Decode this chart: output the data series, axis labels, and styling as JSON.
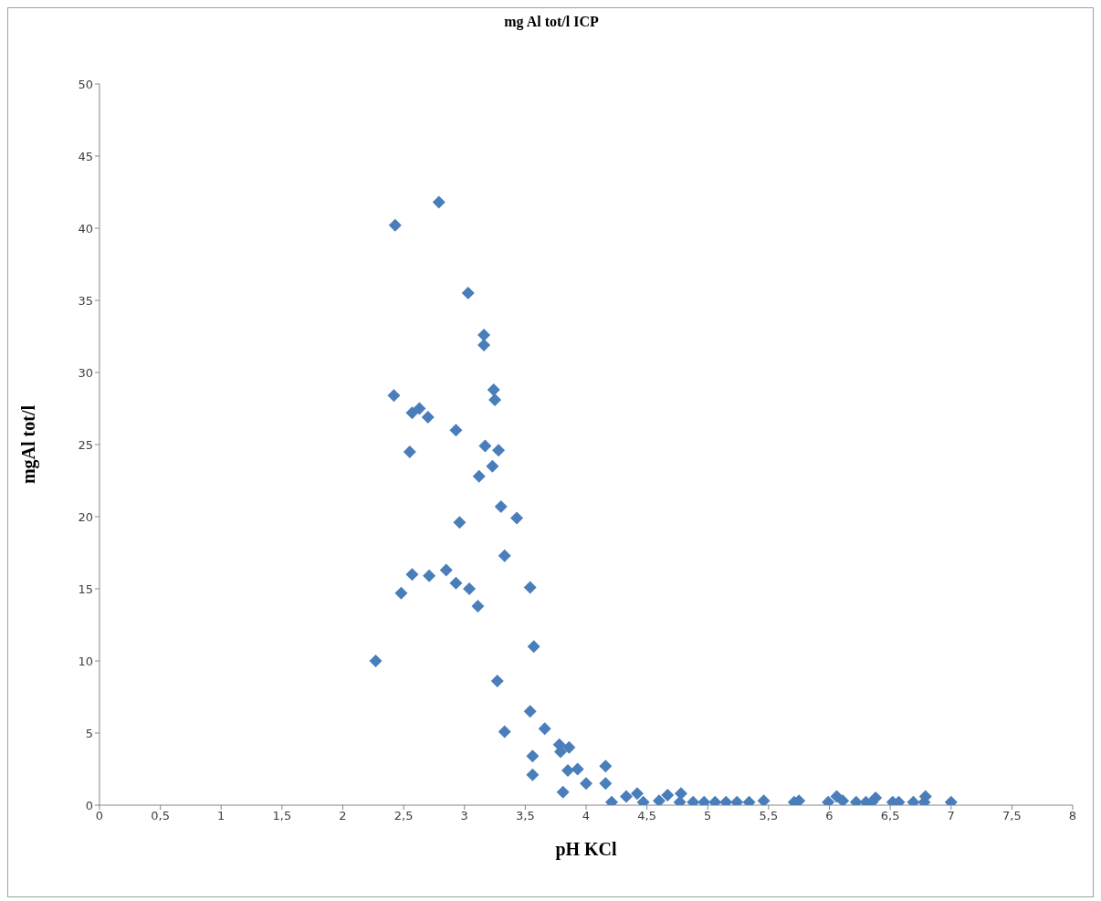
{
  "chart_data": {
    "type": "scatter",
    "title": "mg Al tot/l ICP",
    "xlabel": "pH KCl",
    "ylabel": "mgAl tot/l",
    "x": [
      2.27,
      2.43,
      2.79,
      2.42,
      2.57,
      2.63,
      2.7,
      2.55,
      2.93,
      3.03,
      3.16,
      3.16,
      3.24,
      3.25,
      3.17,
      3.28,
      3.23,
      3.12,
      3.3,
      2.96,
      3.43,
      3.33,
      2.57,
      2.71,
      2.85,
      2.48,
      2.93,
      3.04,
      3.11,
      3.54,
      3.57,
      3.27,
      3.54,
      3.33,
      3.66,
      3.78,
      3.86,
      3.79,
      3.56,
      3.56,
      3.85,
      3.93,
      4.16,
      4.0,
      4.16,
      3.81,
      4.21,
      4.33,
      4.42,
      4.47,
      4.6,
      4.67,
      4.78,
      4.77,
      4.88,
      4.97,
      5.06,
      5.15,
      5.24,
      5.34,
      5.46,
      5.71,
      5.75,
      5.99,
      6.06,
      6.11,
      6.22,
      6.3,
      6.35,
      6.38,
      6.52,
      6.57,
      6.69,
      6.78,
      6.79,
      7.0
    ],
    "series": [
      {
        "color": "#4a7ebb",
        "values": [
          10,
          40.2,
          41.8,
          28.4,
          27.2,
          27.5,
          26.9,
          24.5,
          26,
          35.5,
          32.6,
          31.9,
          28.8,
          28.1,
          24.9,
          24.6,
          23.5,
          22.8,
          20.7,
          19.6,
          19.9,
          17.3,
          16,
          15.9,
          16.3,
          14.7,
          15.4,
          15,
          13.8,
          15.1,
          11,
          8.6,
          6.5,
          5.1,
          5.3,
          4.2,
          4,
          3.7,
          3.4,
          2.1,
          2.4,
          2.5,
          2.7,
          1.5,
          1.5,
          0.9,
          0.2,
          0.6,
          0.8,
          0.2,
          0.3,
          0.7,
          0.8,
          0.2,
          0.2,
          0.2,
          0.2,
          0.2,
          0.2,
          0.2,
          0.3,
          0.2,
          0.3,
          0.2,
          0.6,
          0.3,
          0.2,
          0.2,
          0.2,
          0.5,
          0.2,
          0.2,
          0.2,
          0.2,
          0.6,
          0.2
        ]
      }
    ],
    "xlim": [
      0,
      8
    ],
    "xticks": [
      0,
      {
        "value": 0.5,
        "label": "0,5"
      },
      1,
      {
        "value": 1.5,
        "label": "1,5"
      },
      2,
      {
        "value": 2.5,
        "label": "2,5"
      },
      3,
      {
        "value": 3.5,
        "label": "3,5"
      },
      4,
      {
        "value": 4.5,
        "label": "4,5"
      },
      5,
      {
        "value": 5.5,
        "label": "5,5"
      },
      6,
      {
        "value": 6.5,
        "label": "6,5"
      },
      7,
      {
        "value": 7.5,
        "label": "7,5"
      },
      8
    ],
    "ylim": [
      0,
      50
    ],
    "yticks": [
      0,
      5,
      10,
      15,
      20,
      25,
      30,
      35,
      40,
      45,
      50
    ],
    "grid": false,
    "marker": "diamond"
  }
}
